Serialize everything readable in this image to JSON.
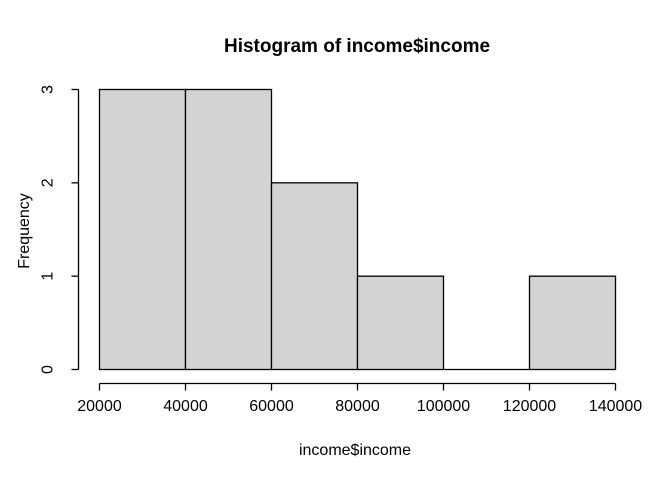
{
  "window": {
    "background": "#ffffff"
  },
  "colors": {
    "bar_fill": "#d3d3d3",
    "bar_border": "#000000",
    "axis": "#000000",
    "text": "#000000"
  },
  "chart_data": {
    "type": "bar",
    "subtype": "histogram",
    "title": "Histogram of income$income",
    "xlabel": "income$income",
    "ylabel": "Frequency",
    "bin_edges": [
      20000,
      40000,
      60000,
      80000,
      100000,
      120000,
      140000
    ],
    "counts": [
      3,
      3,
      2,
      1,
      0,
      1
    ],
    "x_ticks": [
      20000,
      40000,
      60000,
      80000,
      100000,
      120000,
      140000
    ],
    "x_tick_labels": [
      "20000",
      "40000",
      "60000",
      "80000",
      "100000",
      "120000",
      "140000"
    ],
    "y_ticks": [
      0,
      1,
      2,
      3
    ],
    "y_tick_labels": [
      "0",
      "1",
      "2",
      "3"
    ],
    "xlim": [
      20000,
      140000
    ],
    "ylim": [
      0,
      3
    ],
    "grid": false,
    "legend": false
  }
}
